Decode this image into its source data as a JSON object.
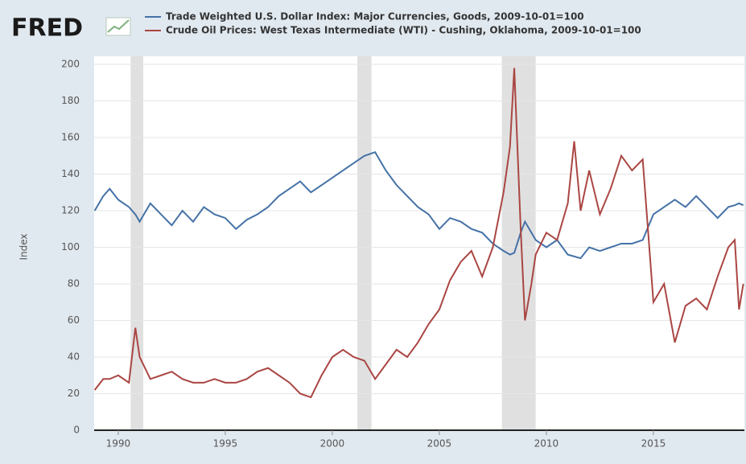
{
  "chart_data": {
    "type": "line",
    "logo": "FRED",
    "ylabel": "Index",
    "x": [
      1988.9,
      1989.3,
      1989.6,
      1990,
      1990.5,
      1990.8,
      1991,
      1991.5,
      1992,
      1992.5,
      1993,
      1993.5,
      1994,
      1994.5,
      1995,
      1995.5,
      1996,
      1996.5,
      1997,
      1997.5,
      1998,
      1998.5,
      1999,
      1999.5,
      2000,
      2000.5,
      2001,
      2001.5,
      2002,
      2002.5,
      2003,
      2003.5,
      2004,
      2004.5,
      2005,
      2005.5,
      2006,
      2006.5,
      2007,
      2007.5,
      2008,
      2008.3,
      2008.5,
      2008.8,
      2009,
      2009.3,
      2009.5,
      2010,
      2010.5,
      2011,
      2011.3,
      2011.6,
      2012,
      2012.5,
      2013,
      2013.5,
      2014,
      2014.5,
      2015,
      2015.5,
      2016,
      2016.5,
      2017,
      2017.5,
      2018,
      2018.5,
      2018.8,
      2019,
      2019.2
    ],
    "series": [
      {
        "name": "Trade Weighted U.S. Dollar Index: Major Currencies, Goods, 2009-10-01=100",
        "color": "#4572a7",
        "values": [
          120,
          128,
          132,
          126,
          122,
          118,
          114,
          124,
          118,
          112,
          120,
          114,
          122,
          118,
          116,
          110,
          115,
          118,
          122,
          128,
          132,
          136,
          130,
          134,
          138,
          142,
          146,
          150,
          152,
          142,
          134,
          128,
          122,
          118,
          110,
          116,
          114,
          110,
          108,
          102,
          98,
          96,
          97,
          108,
          114,
          108,
          104,
          100,
          104,
          96,
          95,
          94,
          100,
          98,
          100,
          102,
          102,
          104,
          118,
          122,
          126,
          122,
          128,
          122,
          116,
          122,
          123,
          124,
          123
        ]
      },
      {
        "name": "Crude Oil Prices: West Texas Intermediate (WTI) - Cushing, Oklahoma, 2009-10-01=100",
        "color": "#aa4643",
        "values": [
          22,
          28,
          28,
          30,
          26,
          56,
          40,
          28,
          30,
          32,
          28,
          26,
          26,
          28,
          26,
          26,
          28,
          32,
          34,
          30,
          26,
          20,
          18,
          30,
          40,
          44,
          40,
          38,
          28,
          36,
          44,
          40,
          48,
          58,
          66,
          82,
          92,
          98,
          84,
          100,
          130,
          155,
          198,
          110,
          60,
          80,
          96,
          108,
          104,
          124,
          158,
          120,
          142,
          118,
          132,
          150,
          142,
          148,
          70,
          80,
          48,
          68,
          72,
          66,
          84,
          100,
          104,
          66,
          80
        ]
      }
    ],
    "shaded_periods": [
      [
        1990.58,
        1991.17
      ],
      [
        2001.17,
        2001.83
      ],
      [
        2007.92,
        2009.5
      ]
    ],
    "shade_color": "#e0e0e0",
    "xlim": [
      1988.875,
      2019.25
    ],
    "xticks": [
      1990,
      1995,
      2000,
      2005,
      2010,
      2015
    ],
    "ylim": [
      0,
      200
    ],
    "yticks": [
      0,
      20,
      40,
      60,
      80,
      100,
      120,
      140,
      160,
      180,
      200
    ],
    "grid": true
  }
}
